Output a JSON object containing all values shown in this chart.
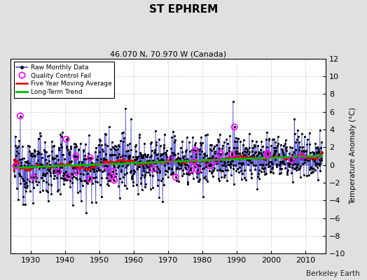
{
  "title": "ST EPHREM",
  "subtitle": "46.070 N, 70.970 W (Canada)",
  "watermark": "Berkeley Earth",
  "xlim": [
    1924,
    2016
  ],
  "ylim": [
    -10,
    12
  ],
  "yticks": [
    -10,
    -8,
    -6,
    -4,
    -2,
    0,
    2,
    4,
    6,
    8,
    10,
    12
  ],
  "xticks": [
    1930,
    1940,
    1950,
    1960,
    1970,
    1980,
    1990,
    2000,
    2010
  ],
  "ylabel": "Temperature Anomaly (°C)",
  "raw_color": "#4444cc",
  "dot_color": "#000000",
  "ma_color": "#dd0000",
  "trend_color": "#00bb00",
  "qc_color": "#ff00ff",
  "background_color": "#e0e0e0",
  "plot_background": "#ffffff",
  "grid_color": "#aaaaaa",
  "seed": 12345,
  "year_start": 1925,
  "year_end": 2014
}
